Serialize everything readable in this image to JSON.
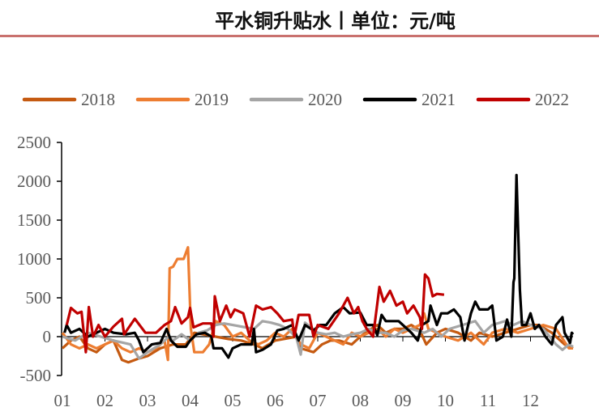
{
  "title": "平水铜升贴水丨单位：元/吨",
  "chart_data": {
    "type": "line",
    "title": "平水铜升贴水丨单位：元/吨",
    "xlabel": "",
    "ylabel": "",
    "x_unit": "month",
    "xlim": [
      1,
      13
    ],
    "ylim": [
      -500,
      2500
    ],
    "yticks": [
      2500,
      2000,
      1500,
      1000,
      500,
      0,
      -500
    ],
    "xtick_labels": [
      "01",
      "02",
      "03",
      "04",
      "05",
      "06",
      "07",
      "08",
      "09",
      "10",
      "11",
      "12"
    ],
    "legend_position": "top",
    "grid": false,
    "series": [
      {
        "name": "2018",
        "color": "#C55A11",
        "points": [
          [
            1.0,
            -150
          ],
          [
            1.2,
            -50
          ],
          [
            1.4,
            0
          ],
          [
            1.6,
            -150
          ],
          [
            1.8,
            -200
          ],
          [
            2.0,
            -100
          ],
          [
            2.2,
            -50
          ],
          [
            2.4,
            -300
          ],
          [
            2.55,
            -330
          ],
          [
            2.8,
            -280
          ],
          [
            3.0,
            -250
          ],
          [
            3.3,
            -150
          ],
          [
            3.6,
            -100
          ],
          [
            3.9,
            -100
          ],
          [
            4.1,
            50
          ],
          [
            4.3,
            30
          ],
          [
            4.6,
            0
          ],
          [
            4.9,
            -30
          ],
          [
            5.2,
            -50
          ],
          [
            5.5,
            -100
          ],
          [
            5.7,
            -150
          ],
          [
            6.0,
            -50
          ],
          [
            6.2,
            -30
          ],
          [
            6.5,
            0
          ],
          [
            6.6,
            -150
          ],
          [
            6.9,
            -200
          ],
          [
            7.1,
            -100
          ],
          [
            7.3,
            -50
          ],
          [
            7.5,
            -50
          ],
          [
            7.8,
            -100
          ],
          [
            8.0,
            0
          ],
          [
            8.2,
            80
          ],
          [
            8.4,
            150
          ],
          [
            8.6,
            50
          ],
          [
            8.8,
            100
          ],
          [
            9.0,
            100
          ],
          [
            9.2,
            150
          ],
          [
            9.4,
            80
          ],
          [
            9.55,
            -100
          ],
          [
            9.8,
            50
          ],
          [
            10.0,
            100
          ],
          [
            10.3,
            50
          ],
          [
            10.6,
            -50
          ],
          [
            10.8,
            50
          ],
          [
            11.1,
            0
          ],
          [
            11.4,
            50
          ],
          [
            11.7,
            100
          ],
          [
            12.0,
            150
          ],
          [
            12.2,
            150
          ],
          [
            12.5,
            50
          ],
          [
            12.8,
            -100
          ],
          [
            13.0,
            -150
          ]
        ]
      },
      {
        "name": "2019",
        "color": "#ED7D31",
        "points": [
          [
            1.0,
            50
          ],
          [
            1.2,
            -100
          ],
          [
            1.4,
            -150
          ],
          [
            1.6,
            -100
          ],
          [
            1.8,
            -150
          ],
          [
            2.0,
            -100
          ],
          [
            2.2,
            -50
          ],
          [
            2.4,
            -150
          ],
          [
            2.6,
            -200
          ],
          [
            2.8,
            -150
          ],
          [
            3.0,
            -200
          ],
          [
            3.2,
            -150
          ],
          [
            3.4,
            -50
          ],
          [
            3.48,
            -300
          ],
          [
            3.52,
            880
          ],
          [
            3.6,
            900
          ],
          [
            3.7,
            1000
          ],
          [
            3.85,
            1000
          ],
          [
            3.95,
            1150
          ],
          [
            4.02,
            100
          ],
          [
            4.1,
            -200
          ],
          [
            4.3,
            -200
          ],
          [
            4.45,
            -100
          ],
          [
            4.6,
            200
          ],
          [
            4.8,
            150
          ],
          [
            5.0,
            0
          ],
          [
            5.2,
            50
          ],
          [
            5.4,
            -50
          ],
          [
            5.6,
            -100
          ],
          [
            5.8,
            -50
          ],
          [
            6.0,
            50
          ],
          [
            6.2,
            0
          ],
          [
            6.4,
            100
          ],
          [
            6.6,
            -100
          ],
          [
            6.8,
            -150
          ],
          [
            7.0,
            50
          ],
          [
            7.2,
            0
          ],
          [
            7.4,
            -50
          ],
          [
            7.6,
            -100
          ],
          [
            7.8,
            50
          ],
          [
            8.0,
            0
          ],
          [
            8.2,
            50
          ],
          [
            8.4,
            100
          ],
          [
            8.6,
            0
          ],
          [
            8.8,
            100
          ],
          [
            9.0,
            50
          ],
          [
            9.2,
            100
          ],
          [
            9.4,
            150
          ],
          [
            9.5,
            300
          ],
          [
            9.6,
            100
          ],
          [
            9.8,
            50
          ],
          [
            10.0,
            0
          ],
          [
            10.3,
            -50
          ],
          [
            10.6,
            50
          ],
          [
            10.9,
            -100
          ],
          [
            11.1,
            50
          ],
          [
            11.4,
            100
          ],
          [
            11.7,
            50
          ],
          [
            12.0,
            100
          ],
          [
            12.3,
            150
          ],
          [
            12.6,
            100
          ],
          [
            12.9,
            -150
          ],
          [
            13.0,
            -150
          ]
        ]
      },
      {
        "name": "2020",
        "color": "#A5A5A5",
        "points": [
          [
            1.0,
            0
          ],
          [
            1.3,
            -50
          ],
          [
            1.6,
            50
          ],
          [
            1.9,
            0
          ],
          [
            2.2,
            -50
          ],
          [
            2.6,
            -100
          ],
          [
            2.8,
            -280
          ],
          [
            3.0,
            -200
          ],
          [
            3.3,
            -100
          ],
          [
            3.5,
            0
          ],
          [
            3.6,
            -50
          ],
          [
            3.8,
            30
          ],
          [
            4.0,
            -50
          ],
          [
            4.2,
            50
          ],
          [
            4.4,
            80
          ],
          [
            4.6,
            150
          ],
          [
            4.8,
            170
          ],
          [
            5.0,
            150
          ],
          [
            5.3,
            120
          ],
          [
            5.5,
            100
          ],
          [
            5.7,
            200
          ],
          [
            5.9,
            180
          ],
          [
            6.1,
            150
          ],
          [
            6.3,
            100
          ],
          [
            6.5,
            -20
          ],
          [
            6.6,
            -230
          ],
          [
            6.7,
            180
          ],
          [
            7.0,
            50
          ],
          [
            7.2,
            30
          ],
          [
            7.4,
            50
          ],
          [
            7.6,
            0
          ],
          [
            7.8,
            30
          ],
          [
            8.0,
            50
          ],
          [
            8.2,
            100
          ],
          [
            8.4,
            50
          ],
          [
            8.6,
            50
          ],
          [
            8.8,
            0
          ],
          [
            9.0,
            80
          ],
          [
            9.2,
            100
          ],
          [
            9.5,
            50
          ],
          [
            9.7,
            100
          ],
          [
            9.9,
            0
          ],
          [
            10.1,
            100
          ],
          [
            10.4,
            150
          ],
          [
            10.7,
            200
          ],
          [
            10.9,
            50
          ],
          [
            11.1,
            150
          ],
          [
            11.4,
            200
          ],
          [
            11.6,
            150
          ],
          [
            11.8,
            200
          ],
          [
            12.0,
            150
          ],
          [
            12.3,
            100
          ],
          [
            12.6,
            -100
          ],
          [
            12.75,
            -170
          ],
          [
            12.9,
            -100
          ],
          [
            13.0,
            -130
          ]
        ]
      },
      {
        "name": "2021",
        "color": "#000000",
        "points": [
          [
            1.05,
            50
          ],
          [
            1.1,
            150
          ],
          [
            1.2,
            50
          ],
          [
            1.4,
            100
          ],
          [
            1.6,
            0
          ],
          [
            1.8,
            50
          ],
          [
            2.0,
            100
          ],
          [
            2.2,
            50
          ],
          [
            2.5,
            30
          ],
          [
            2.7,
            50
          ],
          [
            2.8,
            -50
          ],
          [
            2.9,
            -200
          ],
          [
            3.1,
            -100
          ],
          [
            3.3,
            -80
          ],
          [
            3.45,
            100
          ],
          [
            3.55,
            -50
          ],
          [
            3.7,
            -130
          ],
          [
            3.9,
            -130
          ],
          [
            4.0,
            -50
          ],
          [
            4.15,
            30
          ],
          [
            4.35,
            50
          ],
          [
            4.5,
            0
          ],
          [
            4.55,
            -150
          ],
          [
            4.75,
            -150
          ],
          [
            4.9,
            -270
          ],
          [
            5.0,
            -150
          ],
          [
            5.2,
            -100
          ],
          [
            5.45,
            -100
          ],
          [
            5.5,
            100
          ],
          [
            5.55,
            -200
          ],
          [
            5.7,
            -170
          ],
          [
            5.9,
            -100
          ],
          [
            6.05,
            80
          ],
          [
            6.2,
            100
          ],
          [
            6.4,
            150
          ],
          [
            6.55,
            -50
          ],
          [
            6.7,
            150
          ],
          [
            6.9,
            80
          ],
          [
            7.05,
            150
          ],
          [
            7.2,
            150
          ],
          [
            7.4,
            300
          ],
          [
            7.6,
            380
          ],
          [
            7.75,
            300
          ],
          [
            8.0,
            310
          ],
          [
            8.15,
            150
          ],
          [
            8.3,
            150
          ],
          [
            8.4,
            20
          ],
          [
            8.5,
            280
          ],
          [
            8.6,
            200
          ],
          [
            8.9,
            200
          ],
          [
            9.0,
            150
          ],
          [
            9.2,
            50
          ],
          [
            9.35,
            -50
          ],
          [
            9.45,
            150
          ],
          [
            9.6,
            200
          ],
          [
            9.65,
            400
          ],
          [
            9.8,
            150
          ],
          [
            9.9,
            300
          ],
          [
            10.05,
            300
          ],
          [
            10.2,
            350
          ],
          [
            10.35,
            250
          ],
          [
            10.45,
            -50
          ],
          [
            10.6,
            300
          ],
          [
            10.7,
            450
          ],
          [
            10.8,
            350
          ],
          [
            11.0,
            350
          ],
          [
            11.1,
            400
          ],
          [
            11.2,
            -50
          ],
          [
            11.35,
            0
          ],
          [
            11.45,
            220
          ],
          [
            11.55,
            0
          ],
          [
            11.6,
            700
          ],
          [
            11.62,
            750
          ],
          [
            11.67,
            2080
          ],
          [
            11.75,
            600
          ],
          [
            11.8,
            150
          ],
          [
            11.9,
            150
          ],
          [
            12.0,
            300
          ],
          [
            12.1,
            100
          ],
          [
            12.2,
            150
          ],
          [
            12.35,
            0
          ],
          [
            12.5,
            -100
          ],
          [
            12.6,
            150
          ],
          [
            12.75,
            250
          ],
          [
            12.8,
            50
          ],
          [
            12.93,
            -80
          ],
          [
            12.97,
            50
          ],
          [
            13.0,
            30
          ]
        ]
      },
      {
        "name": "2022",
        "color": "#C00000",
        "points": [
          [
            1.1,
            150
          ],
          [
            1.2,
            370
          ],
          [
            1.35,
            300
          ],
          [
            1.45,
            320
          ],
          [
            1.55,
            -200
          ],
          [
            1.62,
            380
          ],
          [
            1.72,
            0
          ],
          [
            1.85,
            150
          ],
          [
            2.0,
            0
          ],
          [
            2.2,
            130
          ],
          [
            2.4,
            230
          ],
          [
            2.45,
            30
          ],
          [
            2.7,
            230
          ],
          [
            2.95,
            50
          ],
          [
            3.2,
            50
          ],
          [
            3.4,
            150
          ],
          [
            3.55,
            200
          ],
          [
            3.65,
            380
          ],
          [
            3.8,
            170
          ],
          [
            3.95,
            250
          ],
          [
            4.0,
            370
          ],
          [
            4.08,
            120
          ],
          [
            4.3,
            170
          ],
          [
            4.5,
            170
          ],
          [
            4.55,
            0
          ],
          [
            4.58,
            520
          ],
          [
            4.7,
            200
          ],
          [
            4.85,
            400
          ],
          [
            4.95,
            250
          ],
          [
            5.05,
            350
          ],
          [
            5.25,
            300
          ],
          [
            5.4,
            0
          ],
          [
            5.55,
            400
          ],
          [
            5.7,
            350
          ],
          [
            5.9,
            380
          ],
          [
            6.05,
            300
          ],
          [
            6.2,
            200
          ],
          [
            6.4,
            220
          ],
          [
            6.45,
            0
          ],
          [
            6.55,
            280
          ],
          [
            6.8,
            280
          ],
          [
            6.9,
            0
          ],
          [
            7.0,
            150
          ],
          [
            7.25,
            100
          ],
          [
            7.5,
            300
          ],
          [
            7.7,
            500
          ],
          [
            7.85,
            300
          ],
          [
            7.95,
            380
          ],
          [
            8.05,
            200
          ],
          [
            8.15,
            100
          ],
          [
            8.3,
            0
          ],
          [
            8.45,
            640
          ],
          [
            8.55,
            450
          ],
          [
            8.7,
            590
          ],
          [
            8.85,
            400
          ],
          [
            9.0,
            450
          ],
          [
            9.1,
            300
          ],
          [
            9.25,
            400
          ],
          [
            9.4,
            250
          ],
          [
            9.45,
            100
          ],
          [
            9.52,
            800
          ],
          [
            9.6,
            750
          ],
          [
            9.7,
            520
          ],
          [
            9.8,
            550
          ],
          [
            9.97,
            540
          ]
        ]
      }
    ]
  }
}
